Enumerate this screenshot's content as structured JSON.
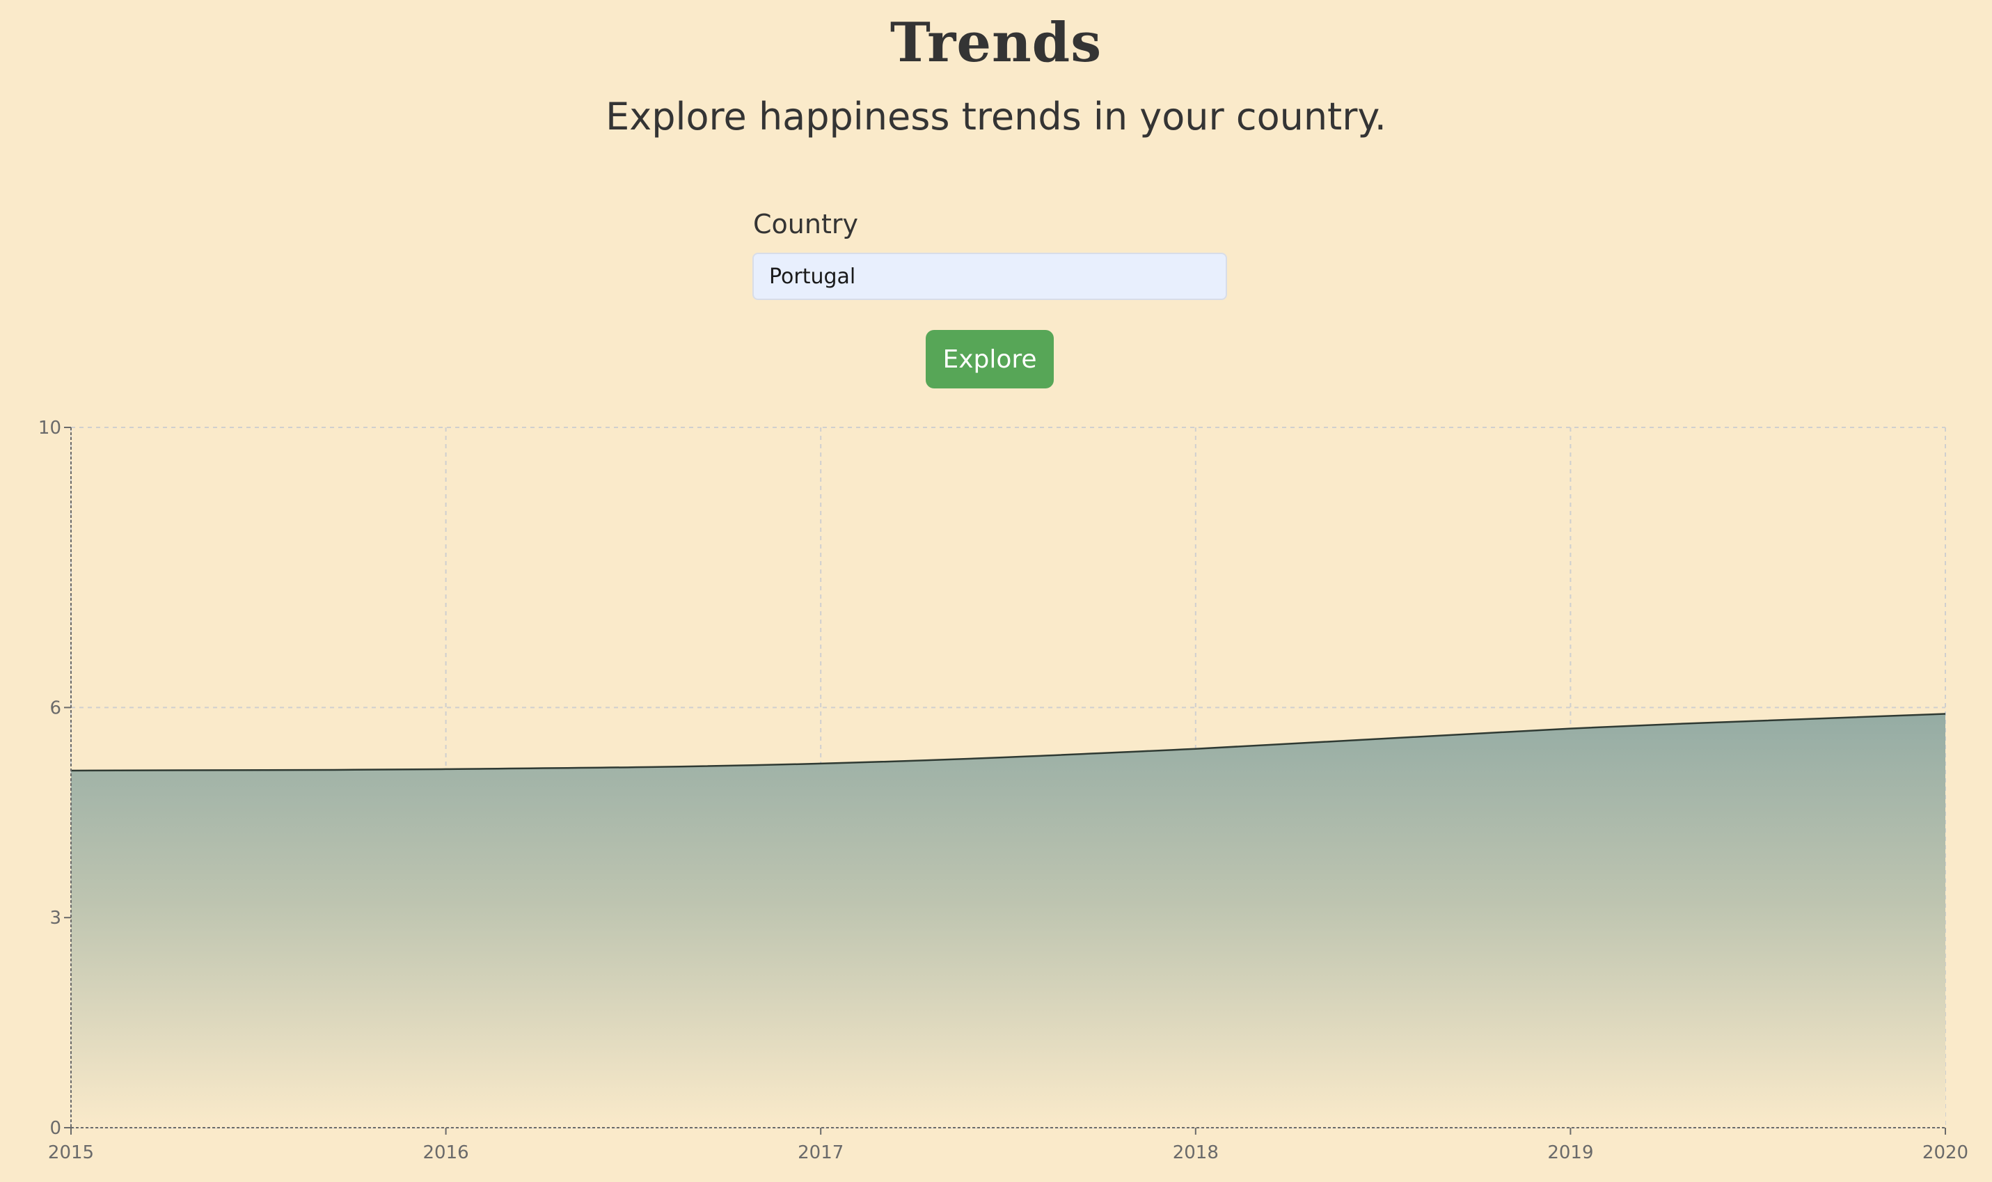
{
  "header": {
    "title": "Trends",
    "subtitle": "Explore happiness trends in your country."
  },
  "form": {
    "country_label": "Country",
    "country_value": "Portugal",
    "explore_label": "Explore"
  },
  "colors": {
    "background": "#faeaca",
    "button": "#57a657",
    "input_background": "#e8effd",
    "area_top": "#95aca4",
    "line": "#2f3a33"
  },
  "chart_data": {
    "type": "area",
    "title": "",
    "xlabel": "",
    "ylabel": "",
    "x": [
      2015,
      2016,
      2017,
      2018,
      2019,
      2020
    ],
    "series": [
      {
        "name": "",
        "values": [
          5.1,
          5.12,
          5.2,
          5.41,
          5.7,
          5.91
        ]
      }
    ],
    "xlim": [
      2015,
      2020
    ],
    "ylim": [
      0,
      10
    ],
    "y_ticks": [
      0,
      3,
      6,
      10
    ],
    "x_ticks": [
      2015,
      2016,
      2017,
      2018,
      2019,
      2020
    ],
    "grid": true,
    "legend": "none"
  }
}
